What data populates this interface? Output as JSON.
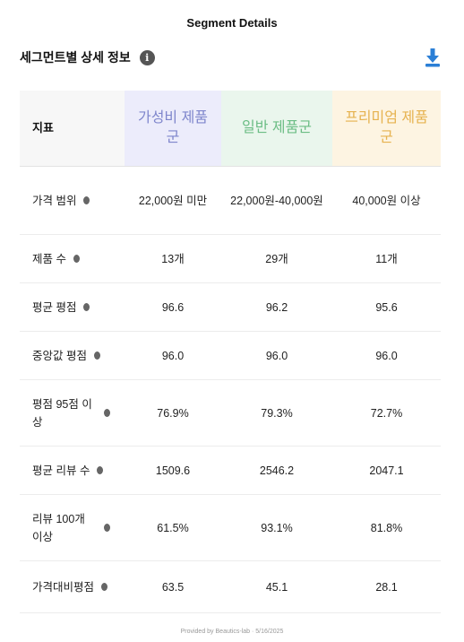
{
  "app": {
    "title": "Segment Details"
  },
  "section": {
    "title": "세그먼트별 상세 정보",
    "info_icon": "info-icon",
    "download_icon": "download-icon"
  },
  "table": {
    "metric_header": "지표",
    "segments": [
      {
        "label": "가성비 제품군",
        "bg": "#ececfb",
        "color": "#7f86cc"
      },
      {
        "label": "일반 제품군",
        "bg": "#eaf6ed",
        "color": "#6cbd85"
      },
      {
        "label": "프리미엄 제품군",
        "bg": "#fdf4e2",
        "color": "#e6b24f"
      }
    ],
    "rows": [
      {
        "metric": "가격 범위",
        "values": [
          "22,000원 미만",
          "22,000원-40,000원",
          "40,000원 이상"
        ]
      },
      {
        "metric": "제품 수",
        "values": [
          "13개",
          "29개",
          "11개"
        ]
      },
      {
        "metric": "평균 평점",
        "values": [
          "96.6",
          "96.2",
          "95.6"
        ]
      },
      {
        "metric": "중앙값 평점",
        "values": [
          "96.0",
          "96.0",
          "96.0"
        ]
      },
      {
        "metric": "평점 95점 이상",
        "values": [
          "76.9%",
          "79.3%",
          "72.7%"
        ]
      },
      {
        "metric": "평균 리뷰 수",
        "values": [
          "1509.6",
          "2546.2",
          "2047.1"
        ]
      },
      {
        "metric": "리뷰 100개 이상",
        "values": [
          "61.5%",
          "93.1%",
          "81.8%"
        ]
      },
      {
        "metric": "가격대비평점",
        "values": [
          "63.5",
          "45.1",
          "28.1"
        ]
      }
    ]
  },
  "footer": {
    "text": "Provided by Beautics-lab · 5/16/2025"
  }
}
